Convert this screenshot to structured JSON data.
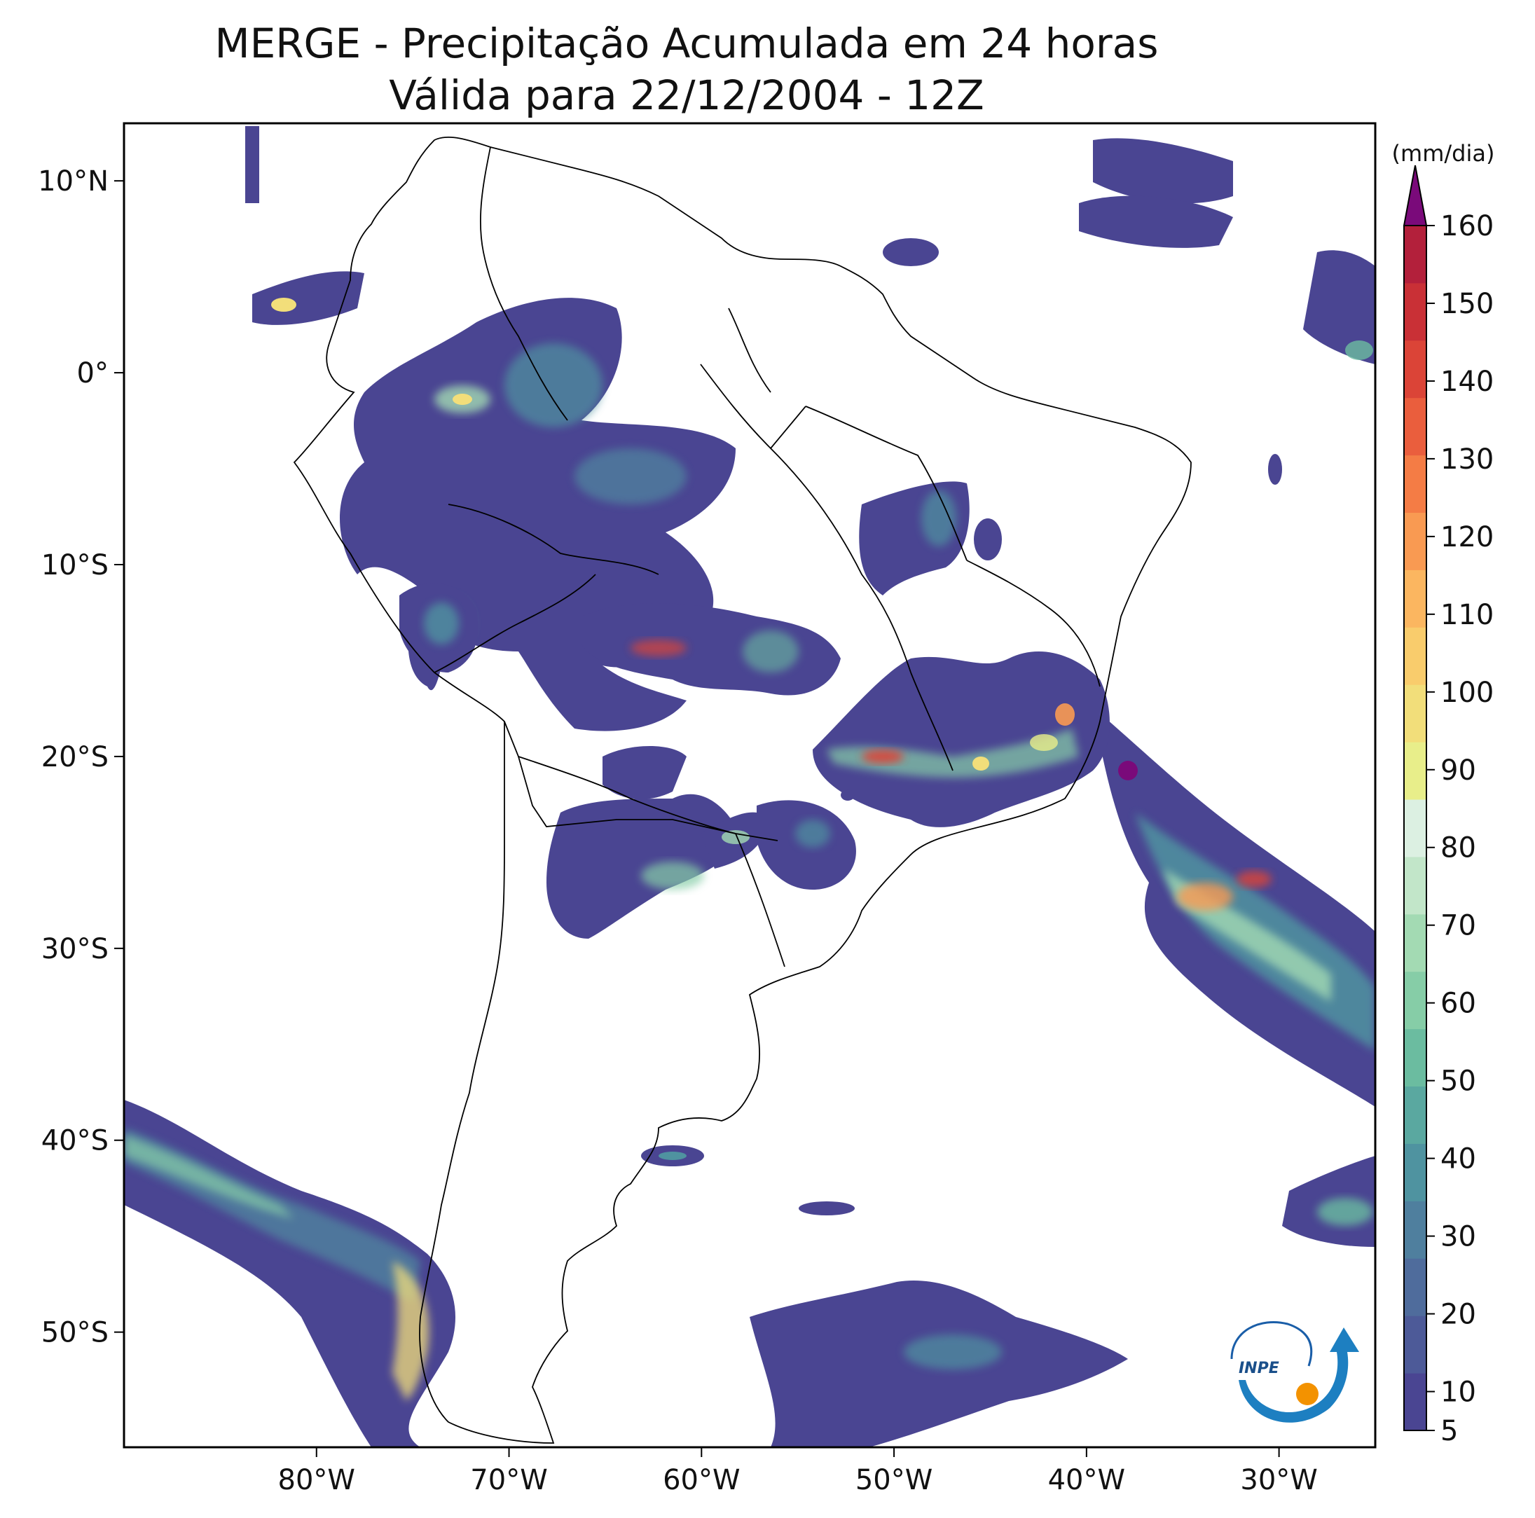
{
  "title": {
    "line1": "MERGE - Precipitação Acumulada em 24 horas",
    "line2": "Válida para 22/12/2004 - 12Z"
  },
  "map": {
    "lon_range": [
      -90,
      -25
    ],
    "lat_range": [
      -56,
      13
    ],
    "lon_ticks": [
      {
        "value": -80,
        "label": "80°W"
      },
      {
        "value": -70,
        "label": "70°W"
      },
      {
        "value": -60,
        "label": "60°W"
      },
      {
        "value": -50,
        "label": "50°W"
      },
      {
        "value": -40,
        "label": "40°W"
      },
      {
        "value": -30,
        "label": "30°W"
      }
    ],
    "lat_ticks": [
      {
        "value": 10,
        "label": "10°N"
      },
      {
        "value": 0,
        "label": "0°"
      },
      {
        "value": -10,
        "label": "10°S"
      },
      {
        "value": -20,
        "label": "20°S"
      },
      {
        "value": -30,
        "label": "30°S"
      },
      {
        "value": -40,
        "label": "40°S"
      },
      {
        "value": -50,
        "label": "50°S"
      }
    ]
  },
  "colorbar": {
    "unit": "(mm/dia)",
    "min": 5,
    "max": 160,
    "ticks": [
      {
        "value": 5,
        "label": "5"
      },
      {
        "value": 10,
        "label": "10"
      },
      {
        "value": 20,
        "label": "20"
      },
      {
        "value": 30,
        "label": "30"
      },
      {
        "value": 40,
        "label": "40"
      },
      {
        "value": 50,
        "label": "50"
      },
      {
        "value": 60,
        "label": "60"
      },
      {
        "value": 70,
        "label": "70"
      },
      {
        "value": 80,
        "label": "80"
      },
      {
        "value": 90,
        "label": "90"
      },
      {
        "value": 100,
        "label": "100"
      },
      {
        "value": 110,
        "label": "110"
      },
      {
        "value": 120,
        "label": "120"
      },
      {
        "value": 130,
        "label": "130"
      },
      {
        "value": 140,
        "label": "140"
      },
      {
        "value": 150,
        "label": "150"
      },
      {
        "value": 160,
        "label": "160"
      }
    ],
    "colors": [
      "#4a4592",
      "#4d5a98",
      "#4f6c9c",
      "#4f7f9e",
      "#4f93a0",
      "#5aa8a0",
      "#6bbca0",
      "#86cda7",
      "#a3dab3",
      "#c2e6c9",
      "#dcf0e2",
      "#e8ee8a",
      "#f2de7a",
      "#f9cc6c",
      "#fbb660",
      "#f99a52",
      "#f47c45",
      "#ea5e3d",
      "#db4437",
      "#c93036",
      "#b3203b"
    ],
    "extend_color": "#7a0a7a"
  },
  "logo": {
    "text": "INPE"
  }
}
